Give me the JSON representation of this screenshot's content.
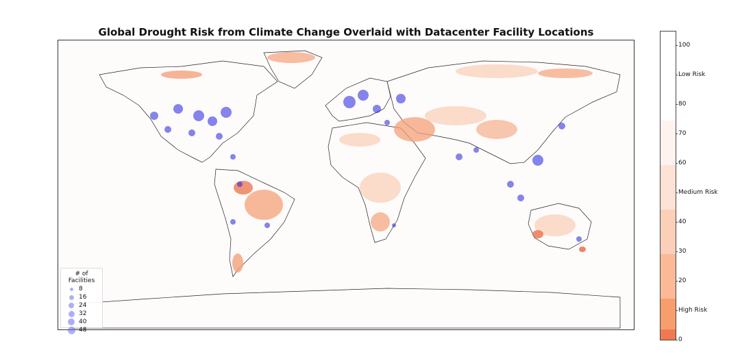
{
  "title": "Global Drought Risk from Climate Change Overlaid with Datacenter Facility Locations",
  "legend": {
    "title": "# of Facilities",
    "entries": [
      "8",
      "16",
      "24",
      "32",
      "40",
      "48"
    ],
    "marker_color": "#6e6ef0"
  },
  "colorbar": {
    "tick_labels": [
      "100",
      "Low Risk",
      "80",
      "70",
      "60",
      "Medium Risk",
      "40",
      "30",
      "20",
      "High Risk",
      "0"
    ],
    "band_colors": [
      "#ffffff",
      "#fef3ee",
      "#fde2d6",
      "#fccfb9",
      "#fbb996",
      "#f89d6c",
      "#ef7a4f"
    ]
  },
  "map_colors": {
    "land": "#fefbfb",
    "drought_high": "#e8683f",
    "drought_medium": "#f4a27a",
    "drought_low": "#fbd7c4",
    "facility": "#2020e0",
    "border": "#222222"
  }
}
